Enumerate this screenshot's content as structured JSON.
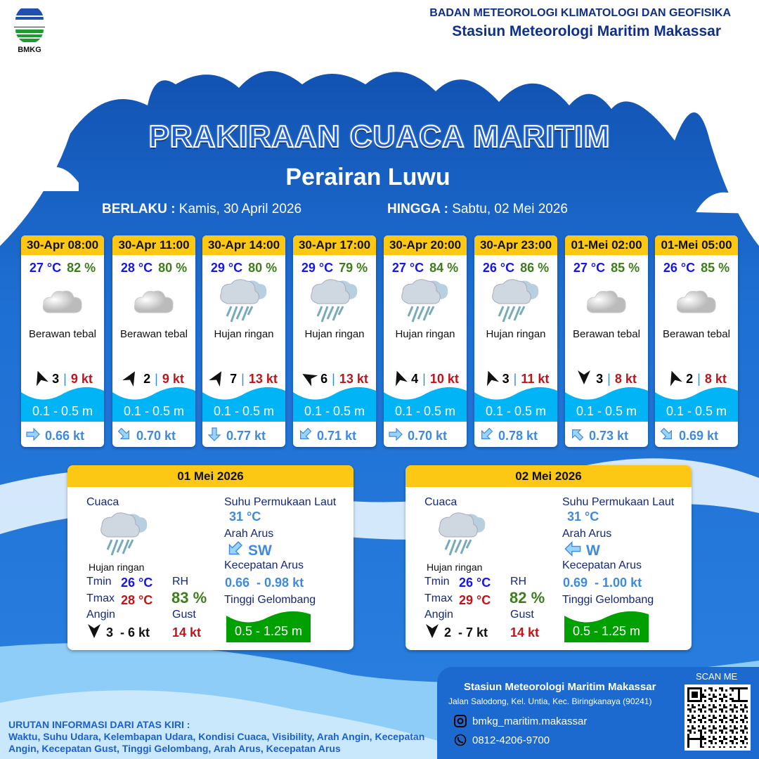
{
  "header": {
    "agency": "BADAN METEOROLOGI KLIMATOLOGI DAN GEOFISIKA",
    "station": "Stasiun Meteorologi Maritim Makassar",
    "logo_text": "BMKG"
  },
  "title": "PRAKIRAAN CUACA MARITIM",
  "area": "Perairan Luwu",
  "validity": {
    "from_label": "BERLAKU :",
    "from": "Kamis, 30 April 2026",
    "to_label": "HINGGA :",
    "to": "Sabtu, 02 Mei 2026"
  },
  "colors": {
    "accent_yellow": "#fcc814",
    "background_blue": "#1c6ad0",
    "temp": "#1515f0",
    "humidity": "#3d7d1b",
    "gust": "#c0141a",
    "wave": "#00b4f5",
    "wave_panel": "#00a000"
  },
  "forecasts": [
    {
      "time": "30-Apr 08:00",
      "temp": "27 °C",
      "rh": "82 %",
      "icon": "cloud-icon",
      "condition": "Berawan tebal",
      "wind_dir_icon": "wind-arrow-n",
      "wind_dir_deg": 340,
      "wind": "3",
      "gust": "9 kt",
      "wave": "0.1 - 0.5 m",
      "current_dir_icon": "arrow-east",
      "current_deg": 90,
      "current": "0.66 kt"
    },
    {
      "time": "30-Apr 11:00",
      "temp": "28 °C",
      "rh": "80 %",
      "icon": "cloud-icon",
      "condition": "Berawan tebal",
      "wind_dir_icon": "wind-arrow-ne",
      "wind_dir_deg": 30,
      "wind": "2",
      "gust": "9 kt",
      "wave": "0.1 - 0.5 m",
      "current_dir_icon": "arrow-southeast",
      "current_deg": 135,
      "current": "0.70 kt"
    },
    {
      "time": "30-Apr 14:00",
      "temp": "29 °C",
      "rh": "80 %",
      "icon": "rain-icon",
      "condition": "Hujan ringan",
      "wind_dir_icon": "wind-arrow-ne",
      "wind_dir_deg": 30,
      "wind": "7",
      "gust": "13 kt",
      "wave": "0.1 - 0.5 m",
      "current_dir_icon": "arrow-south",
      "current_deg": 180,
      "current": "0.77 kt"
    },
    {
      "time": "30-Apr 17:00",
      "temp": "29 °C",
      "rh": "79 %",
      "icon": "rain-icon",
      "condition": "Hujan ringan",
      "wind_dir_icon": "wind-arrow-nw",
      "wind_dir_deg": -60,
      "wind": "6",
      "gust": "13 kt",
      "wave": "0.1 - 0.5 m",
      "current_dir_icon": "arrow-southwest",
      "current_deg": 225,
      "current": "0.71 kt"
    },
    {
      "time": "30-Apr 20:00",
      "temp": "27 °C",
      "rh": "84 %",
      "icon": "rain-icon",
      "condition": "Hujan ringan",
      "wind_dir_icon": "wind-arrow-n",
      "wind_dir_deg": 340,
      "wind": "4",
      "gust": "10 kt",
      "wave": "0.1 - 0.5 m",
      "current_dir_icon": "arrow-east",
      "current_deg": 90,
      "current": "0.70 kt"
    },
    {
      "time": "30-Apr 23:00",
      "temp": "26 °C",
      "rh": "86 %",
      "icon": "rain-icon",
      "condition": "Hujan ringan",
      "wind_dir_icon": "wind-arrow-n",
      "wind_dir_deg": 340,
      "wind": "3",
      "gust": "11 kt",
      "wave": "0.1 - 0.5 m",
      "current_dir_icon": "arrow-southwest",
      "current_deg": 225,
      "current": "0.78 kt"
    },
    {
      "time": "01-Mei 02:00",
      "temp": "27 °C",
      "rh": "85 %",
      "icon": "cloud-icon",
      "condition": "Berawan tebal",
      "wind_dir_icon": "wind-arrow-s",
      "wind_dir_deg": 180,
      "wind": "3",
      "gust": "8 kt",
      "wave": "0.1 - 0.5 m",
      "current_dir_icon": "arrow-northwest",
      "current_deg": 315,
      "current": "0.73 kt"
    },
    {
      "time": "01-Mei 05:00",
      "temp": "26 °C",
      "rh": "85 %",
      "icon": "cloud-icon",
      "condition": "Berawan tebal",
      "wind_dir_icon": "wind-arrow-n",
      "wind_dir_deg": 340,
      "wind": "2",
      "gust": "8 kt",
      "wave": "0.1 - 0.5 m",
      "current_dir_icon": "arrow-southeast",
      "current_deg": 135,
      "current": "0.69 kt"
    }
  ],
  "daily_labels": {
    "weather": "Cuaca",
    "sst": "Suhu Permukaan Laut",
    "current_dir": "Arah Arus",
    "current_speed": "Kecepatan Arus",
    "wave": "Tinggi Gelombang",
    "tmin": "Tmin",
    "tmax": "Tmax",
    "rh": "RH",
    "wind": "Angin",
    "gust": "Gust"
  },
  "daily": [
    {
      "date": "01 Mei 2026",
      "condition": "Hujan ringan",
      "icon": "rain-icon",
      "tmin": "26 °C",
      "tmax": "28 °C",
      "rh": "83 %",
      "wind": "3  - 6 kt",
      "wind_dir_icon": "wind-arrow-s",
      "gust": "14 kt",
      "sst": "31 °C",
      "current_dir": "SW",
      "current_deg": 225,
      "current_speed": "0.66  - 0.98 kt",
      "wave": "0.5 - 1.25 m"
    },
    {
      "date": "02 Mei 2026",
      "condition": "Hujan ringan",
      "icon": "rain-icon",
      "tmin": "26 °C",
      "tmax": "29 °C",
      "rh": "82 %",
      "wind": "2  - 7 kt",
      "wind_dir_icon": "wind-arrow-s",
      "gust": "14 kt",
      "sst": "31 °C",
      "current_dir": "W",
      "current_deg": 270,
      "current_speed": "0.69  - 1.00 kt",
      "wave": "0.5 - 1.25 m"
    }
  ],
  "legend": {
    "title": "URUTAN INFORMASI DARI ATAS KIRI :",
    "text": "Waktu, Suhu Udara, Kelembapan Udara, Kondisi Cuaca, Visibility, Arah Angin, Kecepatan Angin, Kecepatan Gust, Tinggi Gelombang, Arah Arus, Kecepatan Arus"
  },
  "contact": {
    "station": "Stasiun Meteorologi Maritim Makassar",
    "address": "Jalan Salodong, Kel. Untia, Kec. Biringkanaya (90241)",
    "instagram": "bmkg_maritim.makassar",
    "phone": "0812-4206-9700",
    "scan": "SCAN ME"
  }
}
